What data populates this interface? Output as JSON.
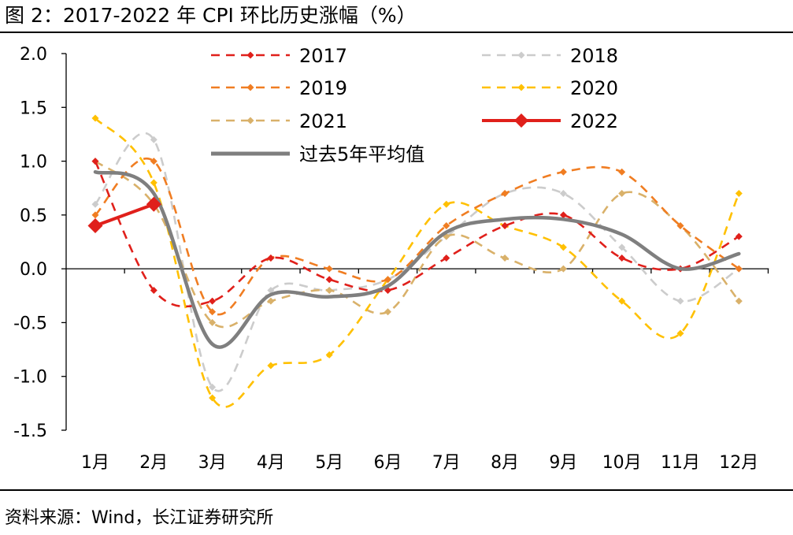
{
  "figure": {
    "title": "图 2：2017-2022 年 CPI 环比历史涨幅（%）",
    "source": "资料来源：Wind，长江证券研究所"
  },
  "chart_data": {
    "type": "line",
    "title": "2017-2022 年 CPI 环比历史涨幅（%）",
    "xlabel": "",
    "ylabel": "%",
    "ylim": [
      -1.5,
      2.0
    ],
    "yticks": [
      2.0,
      1.5,
      1.0,
      0.5,
      0.0,
      -0.5,
      -1.0,
      -1.5
    ],
    "ytick_labels": [
      "2.0",
      "1.5",
      "1.0",
      "0.5",
      "0.0",
      "-0.5",
      "-1.0",
      "-1.5"
    ],
    "categories": [
      "1月",
      "2月",
      "3月",
      "4月",
      "5月",
      "6月",
      "7月",
      "8月",
      "9月",
      "10月",
      "11月",
      "12月"
    ],
    "legend_position": "top",
    "series": [
      {
        "name": "2017",
        "color": "#e0201b",
        "style": "dashed",
        "marker": "diamond",
        "values": [
          1.0,
          -0.2,
          -0.3,
          0.1,
          -0.1,
          -0.2,
          0.1,
          0.4,
          0.5,
          0.1,
          0.0,
          0.3
        ]
      },
      {
        "name": "2018",
        "color": "#cccccc",
        "style": "dashed",
        "marker": "diamond",
        "values": [
          0.6,
          1.2,
          -1.1,
          -0.2,
          -0.2,
          -0.1,
          0.3,
          0.7,
          0.7,
          0.2,
          -0.3,
          0.0
        ]
      },
      {
        "name": "2019",
        "color": "#f07d22",
        "style": "dashed",
        "marker": "diamond",
        "values": [
          0.5,
          1.0,
          -0.4,
          0.1,
          0.0,
          -0.1,
          0.4,
          0.7,
          0.9,
          0.9,
          0.4,
          0.0
        ]
      },
      {
        "name": "2020",
        "color": "#ffc000",
        "style": "dashed",
        "marker": "diamond",
        "values": [
          1.4,
          0.8,
          -1.2,
          -0.9,
          -0.8,
          -0.1,
          0.6,
          0.4,
          0.2,
          -0.3,
          -0.6,
          0.7
        ]
      },
      {
        "name": "2021",
        "color": "#d9b16a",
        "style": "dashed",
        "marker": "diamond",
        "values": [
          1.0,
          0.6,
          -0.5,
          -0.3,
          -0.2,
          -0.4,
          0.3,
          0.1,
          0.0,
          0.7,
          0.4,
          -0.3
        ]
      },
      {
        "name": "2022",
        "color": "#e0201b",
        "style": "solid",
        "marker": "diamond-large",
        "values": [
          0.4,
          0.6,
          null,
          null,
          null,
          null,
          null,
          null,
          null,
          null,
          null,
          null
        ]
      },
      {
        "name": "过去5年平均值",
        "color": "#7f7f7f",
        "style": "solid",
        "marker": "none",
        "values": [
          0.9,
          0.7,
          -0.7,
          -0.24,
          -0.26,
          -0.16,
          0.34,
          0.46,
          0.46,
          0.32,
          0.0,
          0.14
        ]
      }
    ]
  }
}
